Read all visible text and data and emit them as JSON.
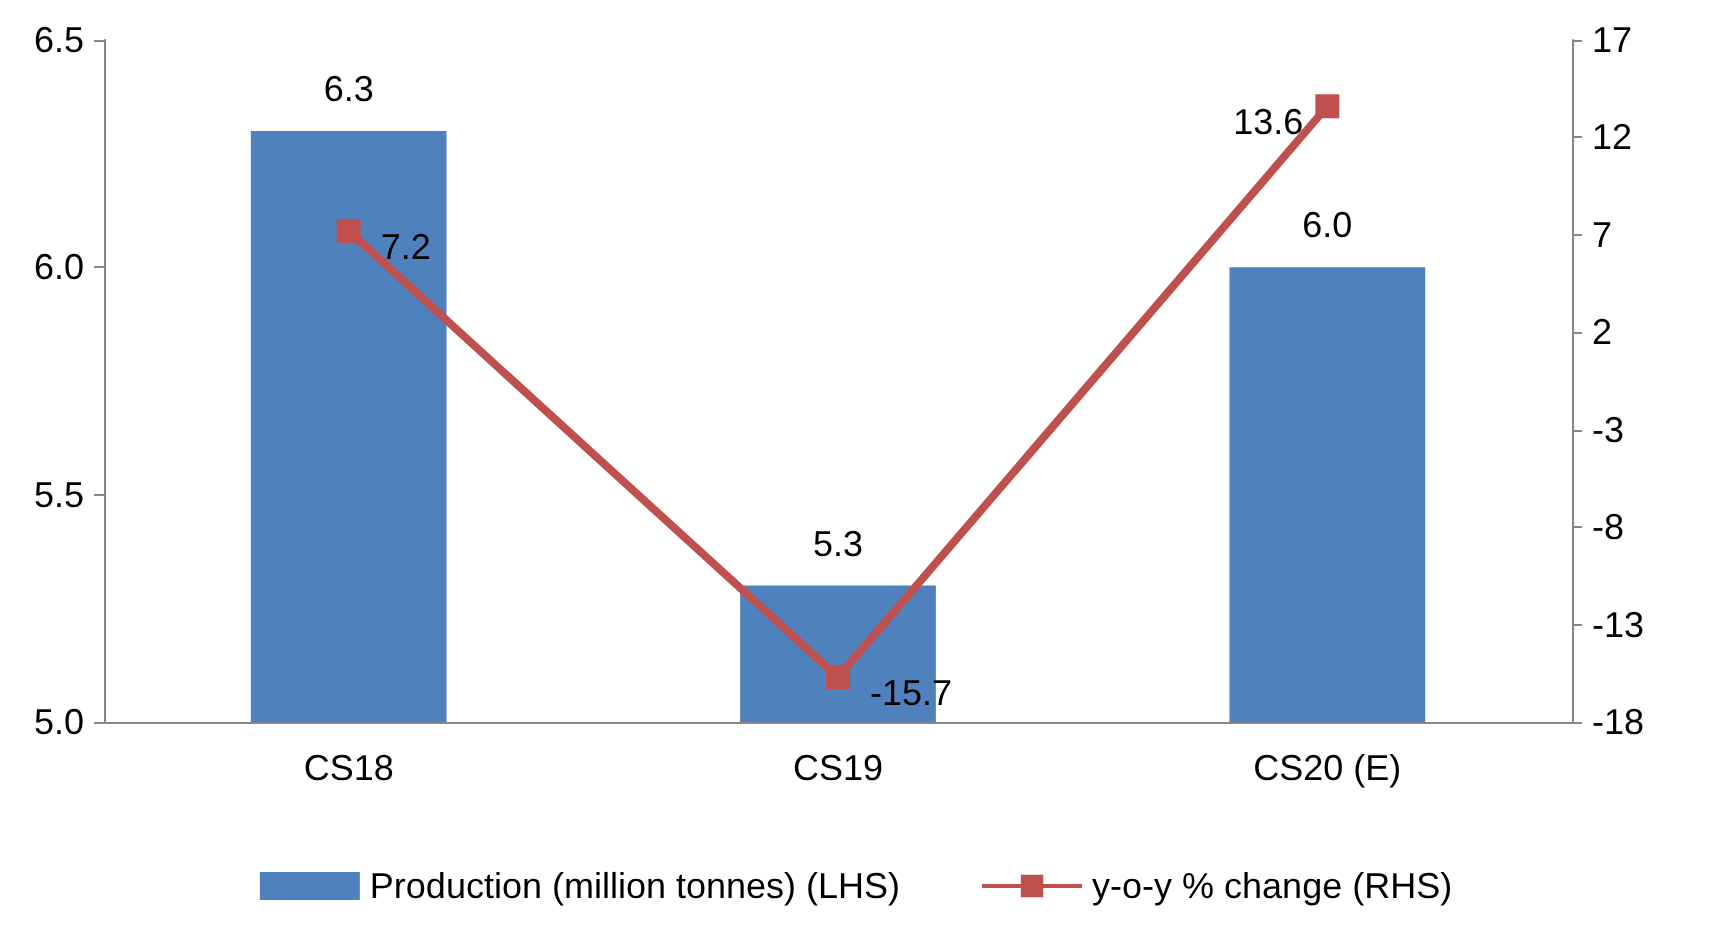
{
  "chart_data": {
    "type": "bar",
    "categories": [
      "CS18",
      "CS19",
      "CS20 (E)"
    ],
    "series": [
      {
        "name": "Production (million tonnes) (LHS)",
        "color": "#4f81bd",
        "values": [
          6.3,
          5.3,
          6.0
        ],
        "value_labels": [
          "6.3",
          "5.3",
          "6.0"
        ]
      },
      {
        "name": "y-o-y % change (RHS)",
        "type": "line",
        "axis": "y2",
        "color": "#c0504d",
        "values": [
          7.2,
          -15.7,
          13.6
        ],
        "value_labels": [
          "7.2",
          "-15.7",
          "13.6"
        ],
        "marker": "square"
      }
    ],
    "ylim": [
      5.0,
      6.5
    ],
    "yticks": [
      {
        "value": 5,
        "label": "5.0"
      },
      {
        "value": 5.5,
        "label": "5.5"
      },
      {
        "value": 6,
        "label": "6.0"
      },
      {
        "value": 6.5,
        "label": "6.5"
      }
    ],
    "y2lim": [
      -18,
      17
    ],
    "y2ticks": [
      -18,
      -13,
      -8,
      -3,
      2,
      7,
      12,
      17
    ],
    "grid": false,
    "legend": "bottom"
  }
}
